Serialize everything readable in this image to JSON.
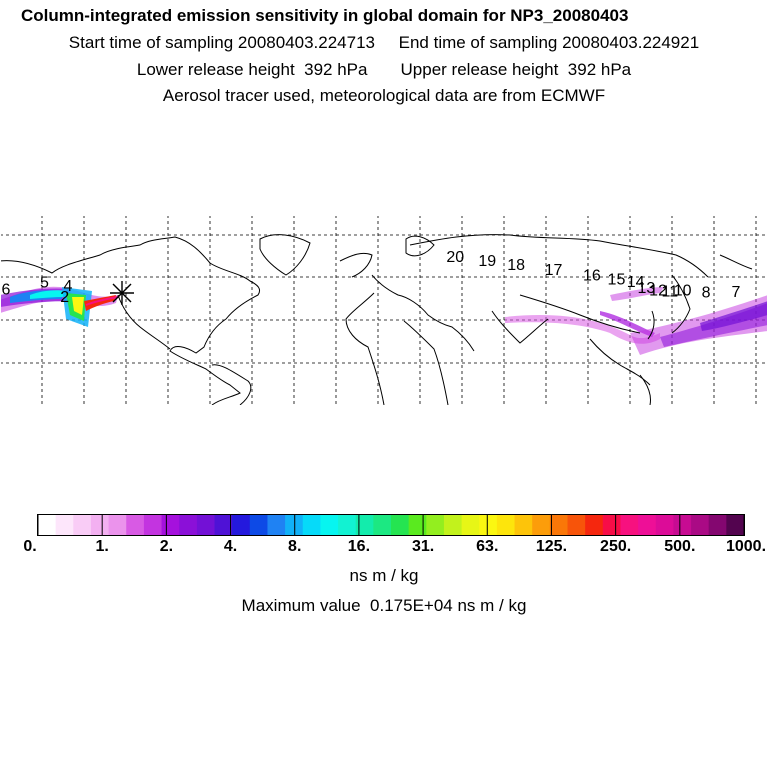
{
  "header": {
    "title": "Column-integrated emission sensitivity in global domain for NP3_20080403",
    "sampling_line": "Start time of sampling 20080403.224713     End time of sampling 20080403.224921",
    "release_line": "Lower release height  392 hPa       Upper release height  392 hPa",
    "tracer_line": "Aerosol tracer used, meteorological data are from ECMWF"
  },
  "map": {
    "release_site_icon": "x-star-icon",
    "track_labels": [
      {
        "text": "2",
        "lon": -150.5,
        "lat": 20.5
      },
      {
        "text": "4",
        "lon": -149.0,
        "lat": 31.0
      },
      {
        "text": "5",
        "lon": -160.0,
        "lat": 34.5
      },
      {
        "text": "6",
        "lon": -178.0,
        "lat": 27.5
      },
      {
        "text": "7",
        "lon": 164.0,
        "lat": 25.0
      },
      {
        "text": "8",
        "lon": 150.0,
        "lat": 24.5
      },
      {
        "text": "10",
        "lon": 139.0,
        "lat": 26.5
      },
      {
        "text": "11",
        "lon": 133.0,
        "lat": 25.5
      },
      {
        "text": "12",
        "lon": 127.5,
        "lat": 26.5
      },
      {
        "text": "13",
        "lon": 122.0,
        "lat": 29.0
      },
      {
        "text": "14",
        "lon": 117.0,
        "lat": 35.0
      },
      {
        "text": "15",
        "lon": 108.0,
        "lat": 37.0
      },
      {
        "text": "16",
        "lon": 96.5,
        "lat": 41.0
      },
      {
        "text": "17",
        "lon": 78.5,
        "lat": 46.5
      },
      {
        "text": "18",
        "lon": 61.0,
        "lat": 51.0
      },
      {
        "text": "19",
        "lon": 47.5,
        "lat": 55.0
      },
      {
        "text": "20",
        "lon": 32.5,
        "lat": 59.0
      }
    ]
  },
  "colorbar": {
    "tick_labels": [
      "0.",
      "1.",
      "2.",
      "4.",
      "8.",
      "16.",
      "31.",
      "63.",
      "125.",
      "250.",
      "500.",
      "1000."
    ],
    "colors": [
      "#ffffff",
      "#fde6fb",
      "#f9ccf6",
      "#f3b0f1",
      "#eb93ec",
      "#d85ae4",
      "#c334e0",
      "#a511dd",
      "#8b10d8",
      "#7311d6",
      "#4f12d6",
      "#2419dd",
      "#0d4ae6",
      "#1f82f3",
      "#11b1f8",
      "#06daf9",
      "#07f5f0",
      "#12f2d2",
      "#13ecac",
      "#1ce882",
      "#25e451",
      "#5aea1f",
      "#93ee1f",
      "#c2f21c",
      "#e7f616",
      "#fbf711",
      "#fde50c",
      "#fdc40a",
      "#fc9d0a",
      "#fa7708",
      "#f7540a",
      "#f5270e",
      "#f70d47",
      "#f7117f",
      "#ee0f97",
      "#dc0c98",
      "#c70b92",
      "#aa0a85",
      "#840770",
      "#53044f"
    ],
    "unit": "ns m / kg",
    "max_value_text": "Maximum value  0.175E+04 ns m / kg"
  }
}
